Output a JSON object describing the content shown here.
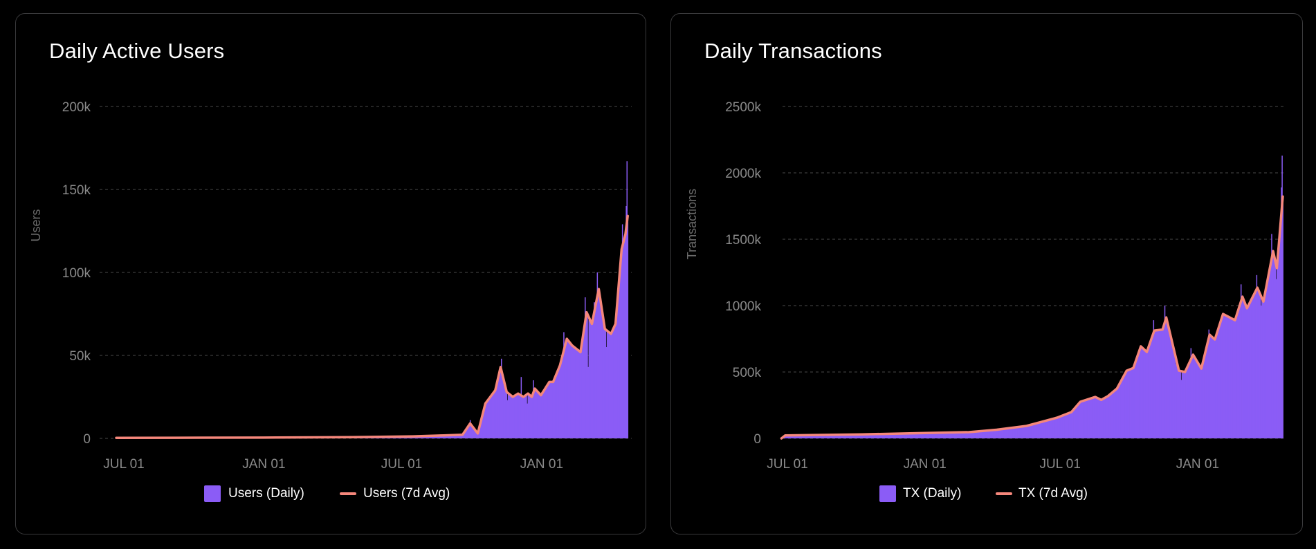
{
  "colors": {
    "daily": "#8b5cf6",
    "avg": "#f5877b",
    "grid": "#4a4a4a",
    "tick": "#8a8a8a",
    "axis_title": "#6a6a6a"
  },
  "chart_data": [
    {
      "id": "users",
      "type": "bar+line",
      "title": "Daily Active Users",
      "ylabel": "Users",
      "xlabel": "",
      "ylim": [
        0,
        200000
      ],
      "yticks": [
        0,
        50000,
        100000,
        150000,
        200000
      ],
      "ytick_labels": [
        "0",
        "50k",
        "100k",
        "150k",
        "200k"
      ],
      "x_unit": "days since first JUL 01",
      "xlim": [
        -10,
        662
      ],
      "xticks": [
        0,
        184,
        365,
        549
      ],
      "xtick_labels": [
        "JUL 01",
        "JAN 01",
        "JUL 01",
        "JAN 01"
      ],
      "grid": true,
      "legend": {
        "placement": "bottom-center",
        "entries": [
          "Users (Daily)",
          "Users (7d Avg)"
        ]
      },
      "avg_points": [
        [
          -10,
          300
        ],
        [
          100,
          400
        ],
        [
          200,
          500
        ],
        [
          300,
          700
        ],
        [
          380,
          1200
        ],
        [
          420,
          1800
        ],
        [
          445,
          2200
        ],
        [
          455,
          9000
        ],
        [
          465,
          3000
        ],
        [
          475,
          21000
        ],
        [
          488,
          29000
        ],
        [
          495,
          43000
        ],
        [
          503,
          28000
        ],
        [
          511,
          25000
        ],
        [
          518,
          27000
        ],
        [
          525,
          25000
        ],
        [
          531,
          27000
        ],
        [
          536,
          25000
        ],
        [
          540,
          30000
        ],
        [
          548,
          26000
        ],
        [
          559,
          34000
        ],
        [
          564,
          34000
        ],
        [
          573,
          44000
        ],
        [
          582,
          60000
        ],
        [
          589,
          56000
        ],
        [
          600,
          52000
        ],
        [
          608,
          76000
        ],
        [
          615,
          69000
        ],
        [
          624,
          90000
        ],
        [
          632,
          66000
        ],
        [
          640,
          63000
        ],
        [
          646,
          69000
        ],
        [
          654,
          114000
        ],
        [
          659,
          123000
        ],
        [
          662,
          134000
        ]
      ],
      "daily_spikes": [
        [
          455,
          11000
        ],
        [
          496,
          48000
        ],
        [
          504,
          23000
        ],
        [
          522,
          37000
        ],
        [
          530,
          21000
        ],
        [
          538,
          35000
        ],
        [
          578,
          64000
        ],
        [
          606,
          85000
        ],
        [
          610,
          43000
        ],
        [
          618,
          82000
        ],
        [
          622,
          100000
        ],
        [
          634,
          55000
        ],
        [
          650,
          86000
        ],
        [
          655,
          129000
        ],
        [
          657,
          118000
        ],
        [
          660,
          140000
        ],
        [
          661,
          167000
        ]
      ]
    },
    {
      "id": "tx",
      "type": "bar+line",
      "title": "Daily Transactions",
      "ylabel": "Transactions",
      "xlabel": "",
      "ylim": [
        0,
        2500000
      ],
      "yticks": [
        0,
        500000,
        1000000,
        1500000,
        2000000,
        2500000
      ],
      "ytick_labels": [
        "0",
        "500k",
        "1000k",
        "1500k",
        "2000k",
        "2500k"
      ],
      "x_unit": "days since first JUL 01",
      "xlim": [
        -8,
        663
      ],
      "xticks": [
        0,
        184,
        365,
        549
      ],
      "xtick_labels": [
        "JUL 01",
        "JAN 01",
        "JUL 01",
        "JAN 01"
      ],
      "grid": true,
      "legend": {
        "placement": "bottom-center",
        "entries": [
          "TX (Daily)",
          "TX (7d Avg)"
        ]
      },
      "avg_points": [
        [
          -8,
          0
        ],
        [
          -3,
          22000
        ],
        [
          100,
          30000
        ],
        [
          184,
          40000
        ],
        [
          243,
          47000
        ],
        [
          280,
          65000
        ],
        [
          320,
          94000
        ],
        [
          361,
          156000
        ],
        [
          380,
          198000
        ],
        [
          392,
          276000
        ],
        [
          412,
          312000
        ],
        [
          420,
          290000
        ],
        [
          429,
          318000
        ],
        [
          441,
          375000
        ],
        [
          454,
          510000
        ],
        [
          463,
          530000
        ],
        [
          473,
          693000
        ],
        [
          481,
          651000
        ],
        [
          491,
          812000
        ],
        [
          502,
          820000
        ],
        [
          507,
          911000
        ],
        [
          524,
          510000
        ],
        [
          532,
          500000
        ],
        [
          543,
          630000
        ],
        [
          554,
          526000
        ],
        [
          565,
          781000
        ],
        [
          572,
          745000
        ],
        [
          583,
          937000
        ],
        [
          599,
          890000
        ],
        [
          609,
          1067000
        ],
        [
          615,
          980000
        ],
        [
          629,
          1135000
        ],
        [
          637,
          1030000
        ],
        [
          650,
          1411000
        ],
        [
          655,
          1282000
        ],
        [
          663,
          1822000
        ]
      ],
      "daily_spikes": [
        [
          490,
          890000
        ],
        [
          505,
          1000000
        ],
        [
          520,
          560000
        ],
        [
          527,
          440000
        ],
        [
          540,
          680000
        ],
        [
          564,
          820000
        ],
        [
          607,
          1160000
        ],
        [
          628,
          1230000
        ],
        [
          634,
          1000000
        ],
        [
          648,
          1540000
        ],
        [
          654,
          1200000
        ],
        [
          661,
          1890000
        ],
        [
          662,
          2130000
        ]
      ]
    }
  ]
}
